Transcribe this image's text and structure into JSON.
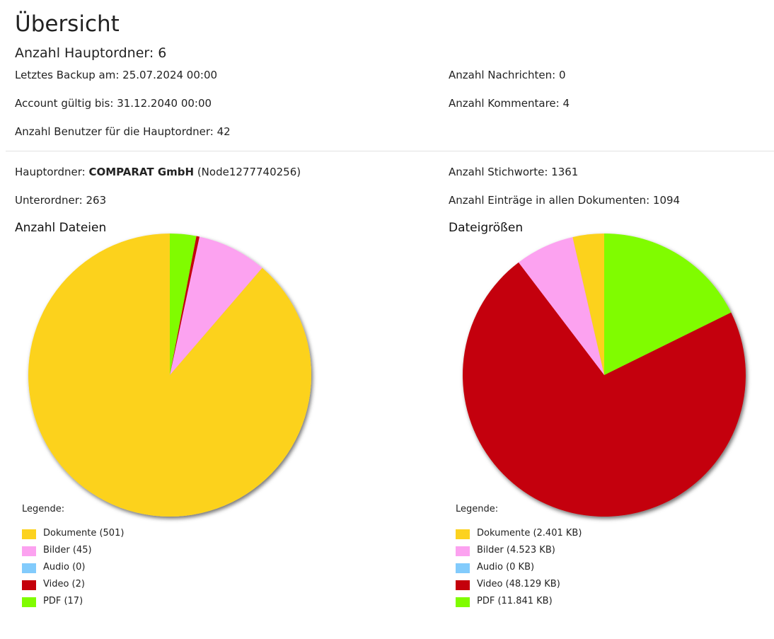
{
  "page": {
    "title": "Übersicht",
    "main_folder_count_label": "Anzahl Hauptordner: 6"
  },
  "summary": {
    "last_backup": "Letztes Backup am: 25.07.2024 00:00",
    "account_valid": "Account gültig bis: 31.12.2040 00:00",
    "users": "Anzahl Benutzer für die Hauptordner: 42",
    "messages": "Anzahl Nachrichten: 0",
    "comments": "Anzahl Kommentare: 4"
  },
  "folder": {
    "prefix": "Hauptordner: ",
    "name": "COMPARAT GmbH",
    "node": " (Node1277740256)",
    "subfolders": "Unterordner: 263",
    "keywords": "Anzahl Stichworte: 1361",
    "entries": "Anzahl Einträge in allen Dokumenten: 1094"
  },
  "legend_title": "Legende:",
  "chart_data": [
    {
      "type": "pie",
      "title": "Anzahl Dateien",
      "categories": [
        "Dokumente",
        "Bilder",
        "Audio",
        "Video",
        "PDF"
      ],
      "values": [
        501,
        45,
        0,
        2,
        17
      ],
      "legend": [
        "Dokumente (501)",
        "Bilder (45)",
        "Audio (0)",
        "Video (2)",
        "PDF (17)"
      ],
      "colors": [
        "#fcd21f",
        "#fca2f0",
        "#82cbfc",
        "#c4000b",
        "#80fc00"
      ],
      "legend_position": "bottom-left"
    },
    {
      "type": "pie",
      "title": "Dateigrößen",
      "categories": [
        "Dokumente",
        "Bilder",
        "Audio",
        "Video",
        "PDF"
      ],
      "values": [
        2401,
        4523,
        0,
        48129,
        11841
      ],
      "unit": "KB",
      "legend": [
        "Dokumente (2.401 KB)",
        "Bilder (4.523 KB)",
        "Audio (0 KB)",
        "Video (48.129 KB)",
        "PDF (11.841 KB)"
      ],
      "colors": [
        "#fcd21f",
        "#fca2f0",
        "#82cbfc",
        "#c4000b",
        "#80fc00"
      ],
      "legend_position": "bottom-left"
    }
  ]
}
